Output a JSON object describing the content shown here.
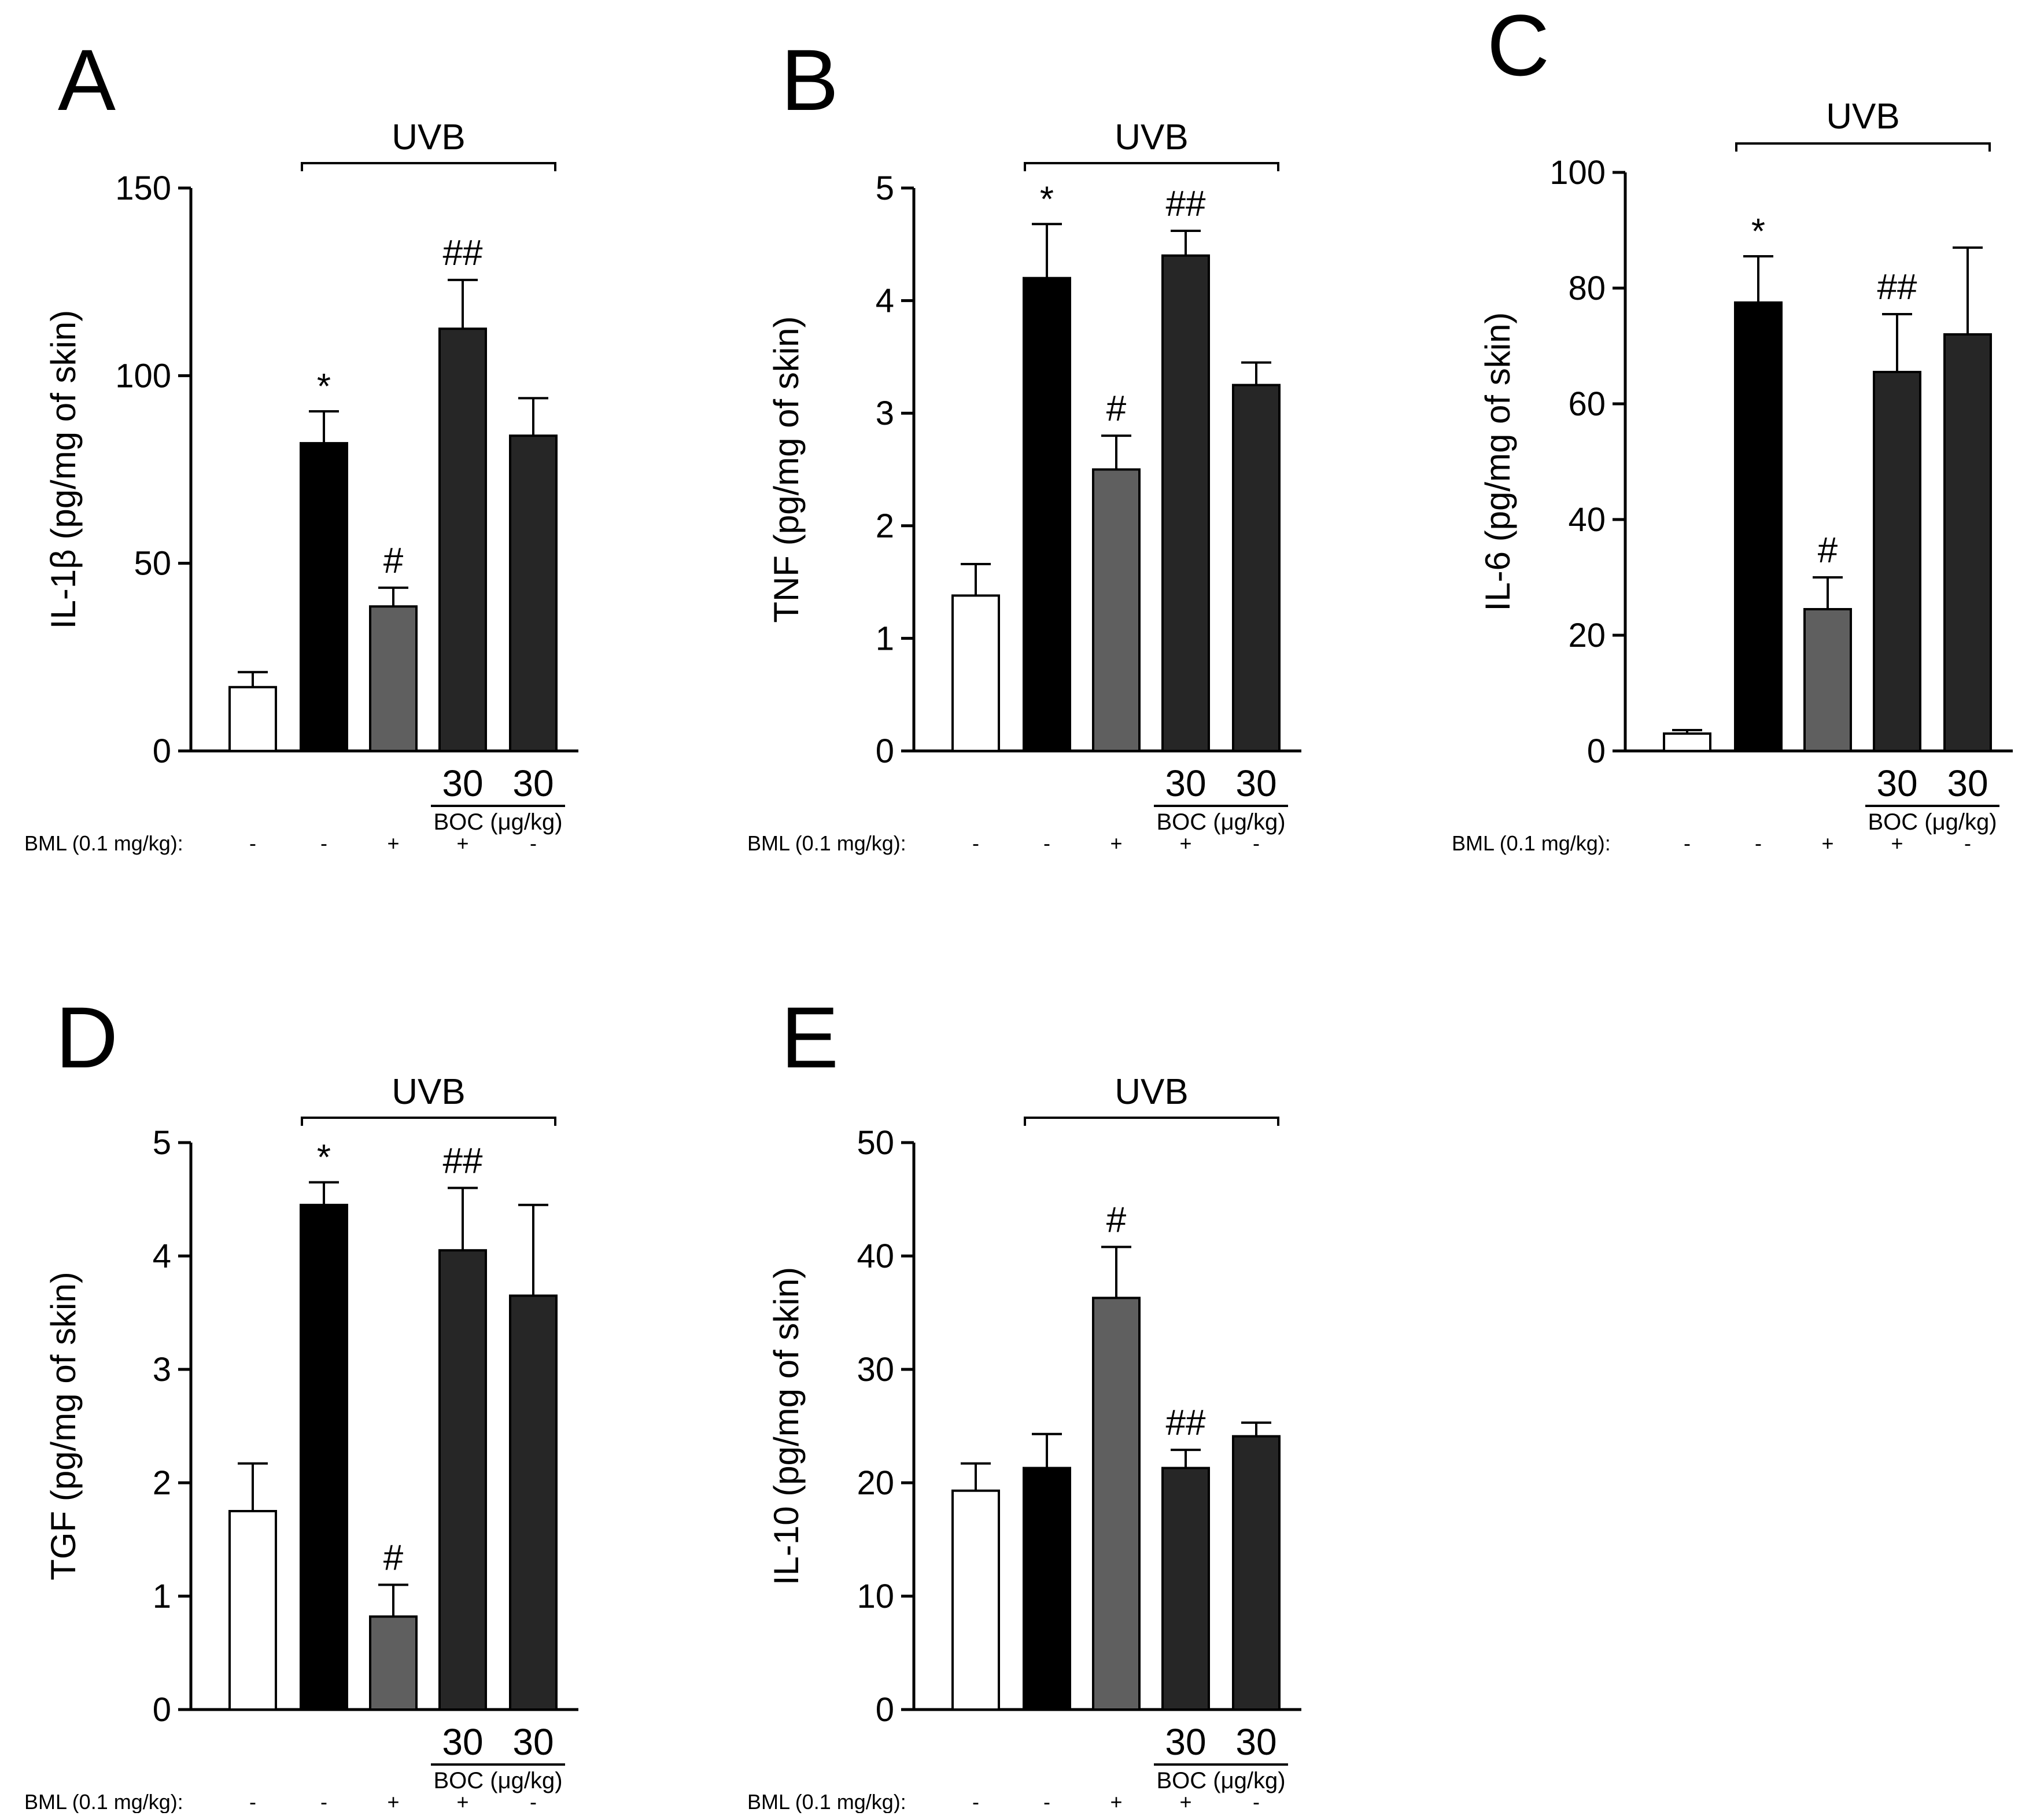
{
  "colors": {
    "control": "#ffffff",
    "uvb": "#000000",
    "bml": "#5f5f5f",
    "bml_boc": "#262626",
    "boc": "#262626"
  },
  "chart_data": [
    {
      "panel": "A",
      "type": "bar",
      "title": "UVB",
      "ylabel": "IL-1β (pg/mg of skin)",
      "ylim": [
        0,
        150
      ],
      "yticks": [
        "0",
        "50",
        "100",
        "150"
      ],
      "values": [
        17,
        82,
        38.5,
        112.5,
        84
      ],
      "errors": [
        4,
        8.5,
        5,
        13,
        10
      ],
      "sig": [
        "",
        "*",
        "#",
        "##",
        ""
      ],
      "dose": [
        "",
        "",
        "",
        "30",
        "30"
      ],
      "boc_label": "BOC (μg/kg)",
      "bml_label": "BML  (0.1 mg/kg):",
      "bml": [
        "-",
        "-",
        "+",
        "+",
        "-"
      ]
    },
    {
      "panel": "B",
      "type": "bar",
      "title": "UVB",
      "ylabel": "TNF (pg/mg of skin)",
      "ylim": [
        0,
        5
      ],
      "yticks": [
        "0",
        "1",
        "2",
        "3",
        "4",
        "5"
      ],
      "values": [
        1.38,
        4.2,
        2.5,
        4.4,
        3.25
      ],
      "errors": [
        0.28,
        0.48,
        0.3,
        0.22,
        0.2
      ],
      "sig": [
        "",
        "*",
        "#",
        "##",
        ""
      ],
      "dose": [
        "",
        "",
        "",
        "30",
        "30"
      ],
      "boc_label": "BOC (μg/kg)",
      "bml_label": "BML  (0.1 mg/kg):",
      "bml": [
        "-",
        "-",
        "+",
        "+",
        "-"
      ]
    },
    {
      "panel": "C",
      "type": "bar",
      "title": "UVB",
      "ylabel": "IL-6 (pg/mg of skin)",
      "ylim": [
        0,
        100
      ],
      "yticks": [
        "0",
        "20",
        "40",
        "60",
        "80",
        "100"
      ],
      "values": [
        3,
        77.5,
        24.5,
        65.5,
        72
      ],
      "errors": [
        0.6,
        8,
        5.5,
        10,
        15
      ],
      "sig": [
        "",
        "*",
        "#",
        "##",
        ""
      ],
      "dose": [
        "",
        "",
        "",
        "30",
        "30"
      ],
      "boc_label": "BOC (μg/kg)",
      "bml_label": "BML  (0.1 mg/kg):",
      "bml": [
        "-",
        "-",
        "+",
        "+",
        "-"
      ]
    },
    {
      "panel": "D",
      "type": "bar",
      "title": "UVB",
      "ylabel": "TGF (pg/mg of skin)",
      "ylim": [
        0,
        5
      ],
      "yticks": [
        "0",
        "1",
        "2",
        "3",
        "4",
        "5"
      ],
      "values": [
        1.75,
        4.45,
        0.82,
        4.05,
        3.65
      ],
      "errors": [
        0.42,
        0.2,
        0.28,
        0.55,
        0.8
      ],
      "sig": [
        "",
        "*",
        "#",
        "##",
        ""
      ],
      "dose": [
        "",
        "",
        "",
        "30",
        "30"
      ],
      "boc_label": "BOC (μg/kg)",
      "bml_label": "BML  (0.1 mg/kg):",
      "bml": [
        "-",
        "-",
        "+",
        "+",
        "-"
      ]
    },
    {
      "panel": "E",
      "type": "bar",
      "title": "UVB",
      "ylabel": "IL-10 (pg/mg of skin)",
      "ylim": [
        0,
        50
      ],
      "yticks": [
        "0",
        "10",
        "20",
        "30",
        "40",
        "50"
      ],
      "values": [
        19.3,
        21.3,
        36.3,
        21.3,
        24.1
      ],
      "errors": [
        2.4,
        3,
        4.5,
        1.6,
        1.2
      ],
      "sig": [
        "",
        "",
        "#",
        "##",
        ""
      ],
      "dose": [
        "",
        "",
        "",
        "30",
        "30"
      ],
      "boc_label": "BOC (μg/kg)",
      "bml_label": "BML  (0.1 mg/kg):",
      "bml": [
        "-",
        "-",
        "+",
        "+",
        "-"
      ]
    }
  ]
}
